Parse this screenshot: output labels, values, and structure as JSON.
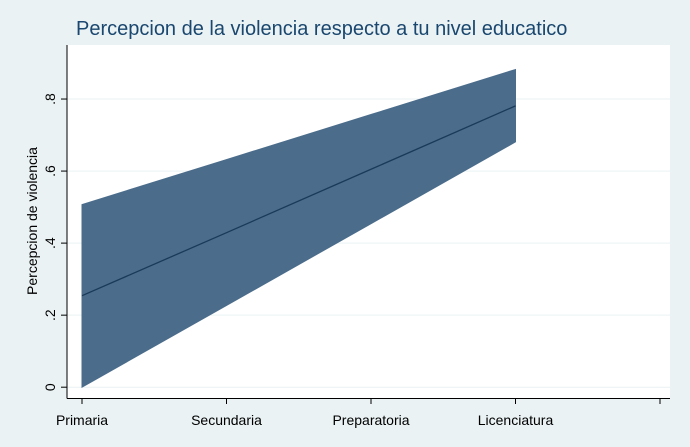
{
  "chart_data": {
    "type": "line",
    "title": "Percepcion de la violencia respecto a tu nivel educatico",
    "xlabel": "",
    "ylabel": "Percepcion de violencia",
    "categories": [
      "Primaria",
      "Secundaria",
      "Preparatoria",
      "Licenciatura"
    ],
    "x_extra_slots": 1,
    "yticks": [
      0,
      0.2,
      0.4,
      0.6,
      0.8
    ],
    "ytick_labels": [
      "0",
      ".2",
      ".4",
      ".6",
      ".8"
    ],
    "ylim": [
      -0.03,
      0.95
    ],
    "grid": true,
    "legend": "none",
    "series": [
      {
        "values": [
          0.254,
          0.429,
          0.605,
          0.781
        ],
        "lower": [
          0.0,
          0.227,
          0.454,
          0.681
        ],
        "upper": [
          0.507,
          0.632,
          0.757,
          0.882
        ]
      }
    ],
    "colors": {
      "background": "#eaf2f3",
      "plot_area": "#ffffff",
      "band_fill": "#4b6c8b",
      "line": "#1a3a5a",
      "title": "#1a476f",
      "grid": "#eaf2f3",
      "axis": "#000000"
    }
  }
}
